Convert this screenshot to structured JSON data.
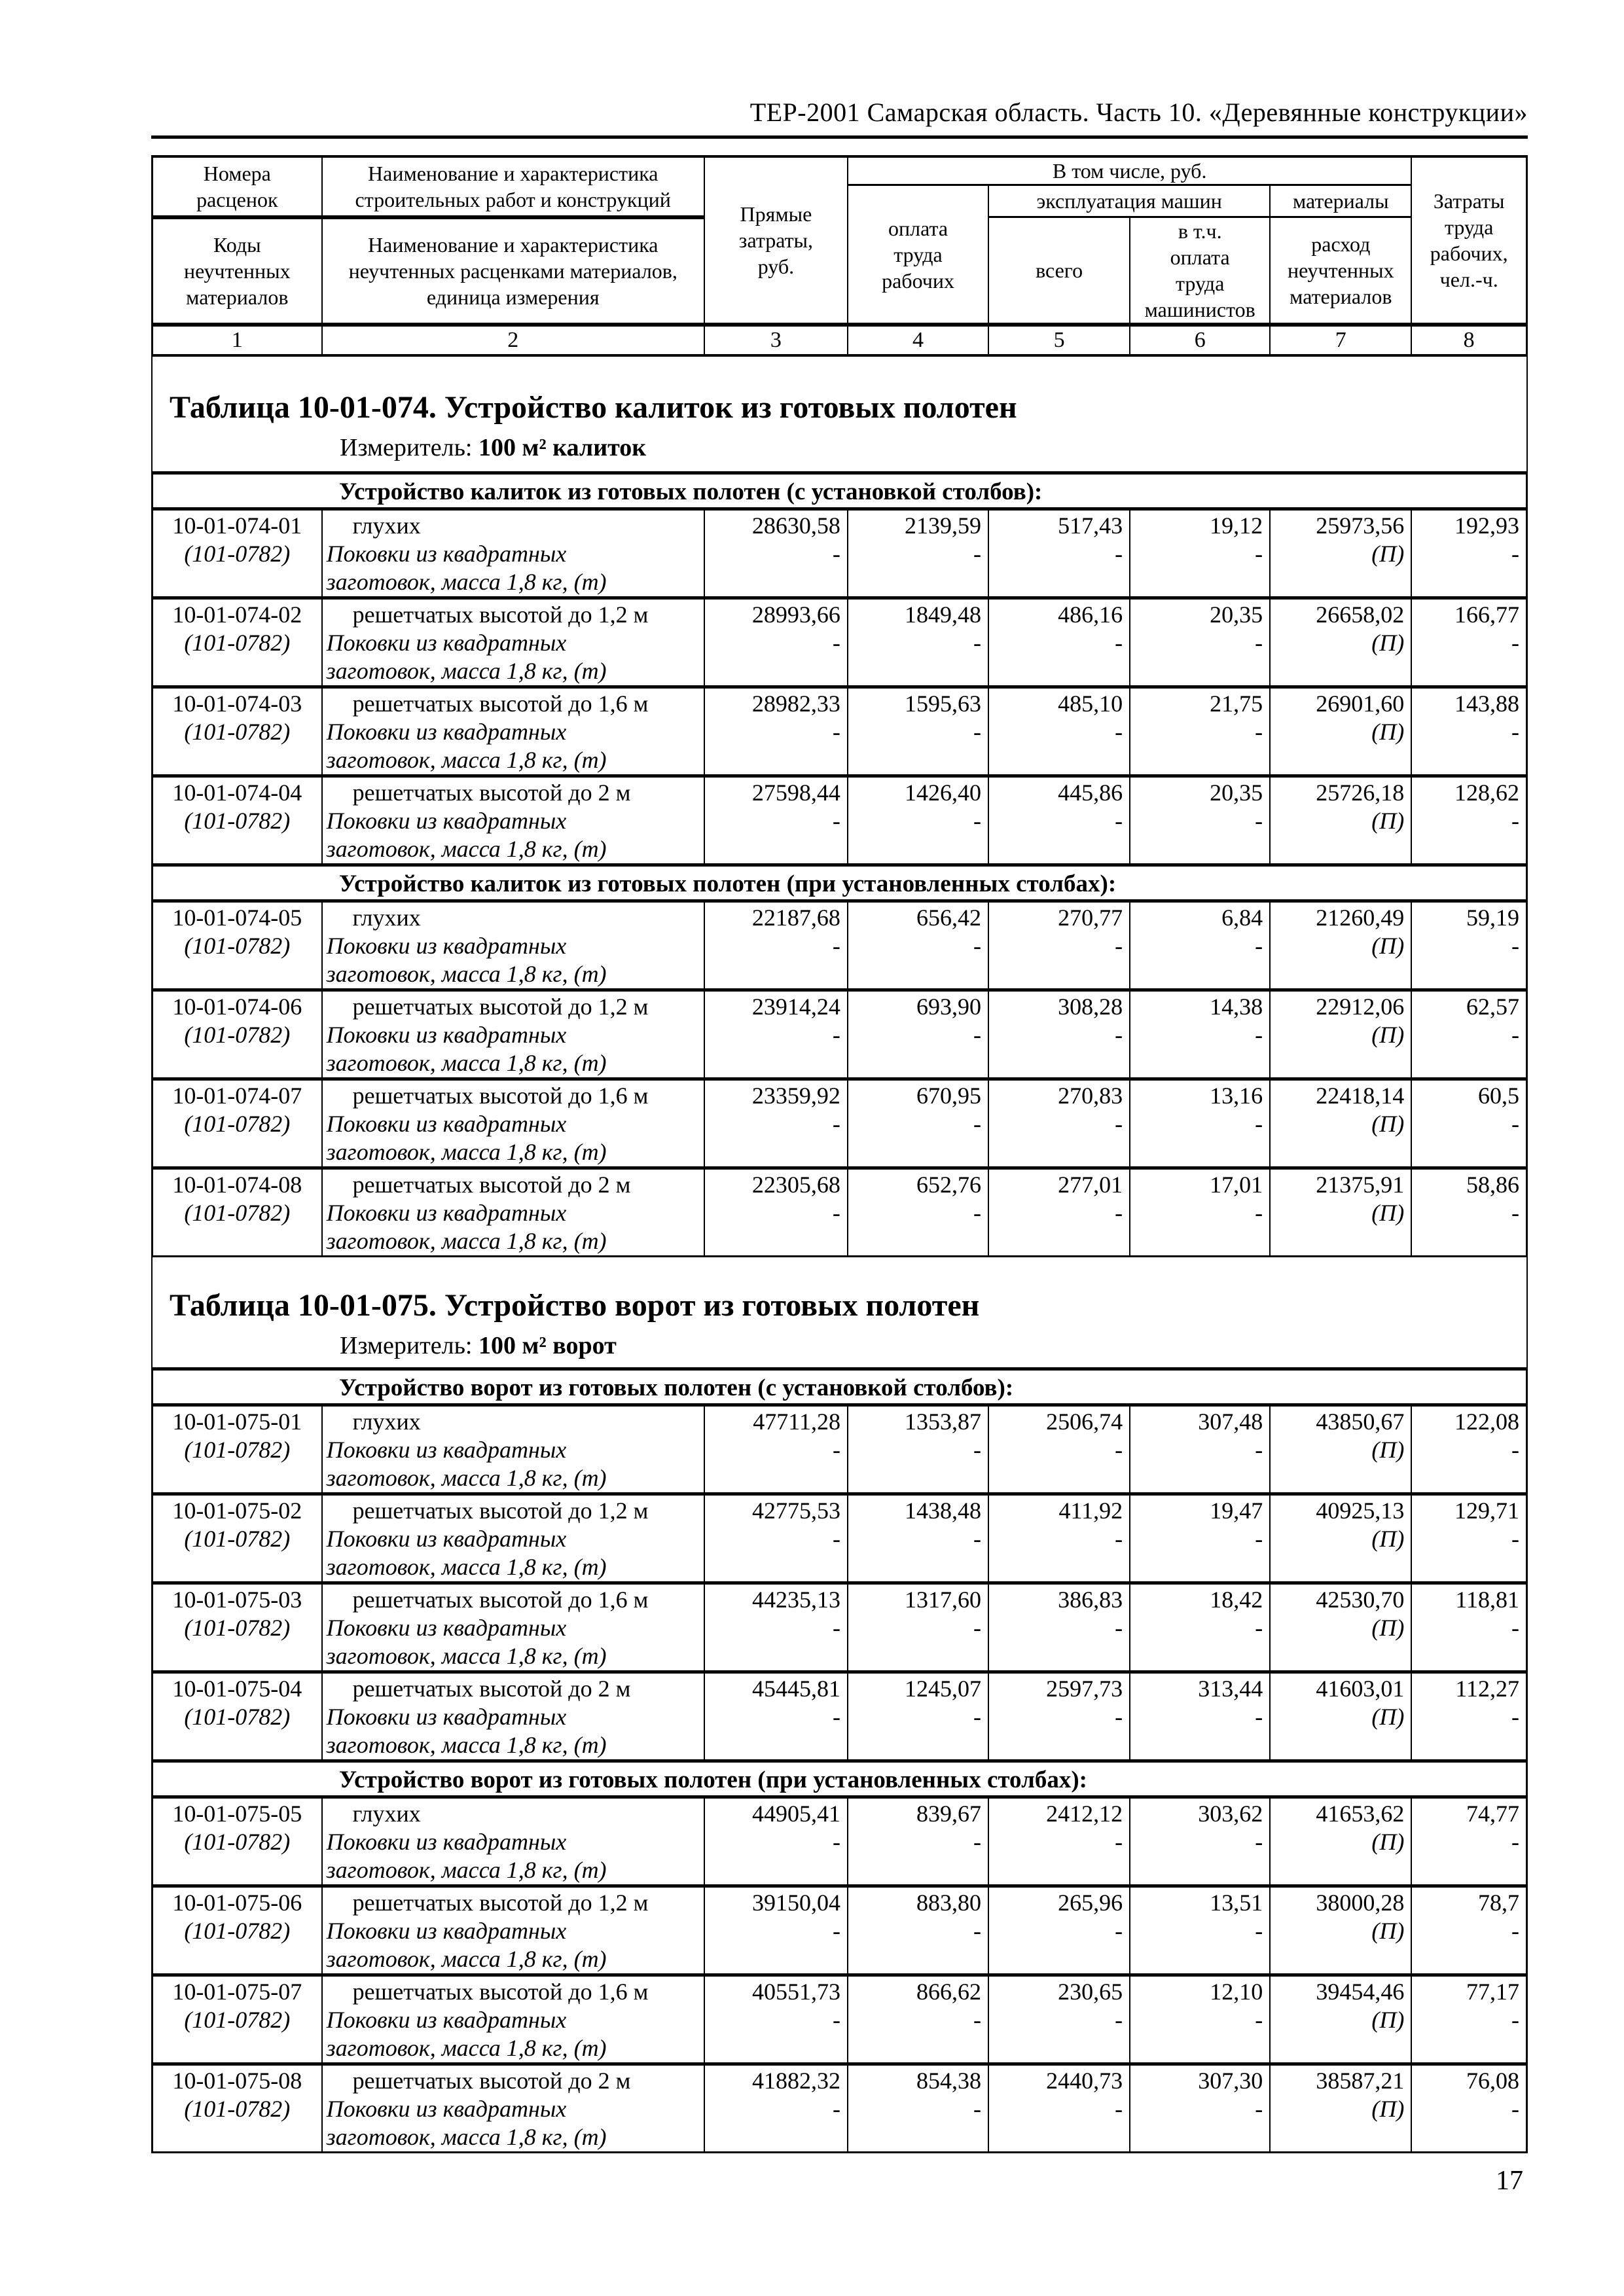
{
  "page_header": "ТЕР-2001 Самарская область. Часть 10. «Деревянные конструкции»",
  "page_number": "17",
  "columns_header": {
    "col1_top": "Номера\nрасценок",
    "col1_bottom": "Коды\nнеучтенных\nматериалов",
    "col2_top": "Наименование и характеристика\nстроительных работ и конструкций",
    "col2_bottom": "Наименование и характеристика\nнеучтенных расценками материалов,\nединица измерения",
    "col3": "Прямые\nзатраты,\nруб.",
    "group_including": "В том числе, руб.",
    "col4": "оплата\nтруда\nрабочих",
    "group_machines": "эксплуатация машин",
    "col5": "всего",
    "col6": "в т.ч.\nоплата\nтруда\nмашинистов",
    "group_materials": "материалы",
    "col7": "расход\nнеучтенных\nматериалов",
    "col8": "Затраты\nтруда\nрабочих,\nчел.-ч.",
    "numbers": [
      "1",
      "2",
      "3",
      "4",
      "5",
      "6",
      "7",
      "8"
    ]
  },
  "second_line": {
    "dash": "-",
    "materials_note": "(П)"
  },
  "tables": [
    {
      "title": "Таблица 10-01-074. Устройство калиток из готовых полотен",
      "measure_label": "Измеритель:",
      "measure_value": "100 м² калиток",
      "sections": [
        {
          "header": "Устройство калиток из готовых полотен (с установкой столбов):",
          "rows": [
            {
              "code": "10-01-074-01",
              "material_code": "(101-0782)",
              "work": "глухих",
              "material_lines": [
                "Поковки из квадратных",
                "заготовок, масса 1,8 кг, (т)"
              ],
              "direct": "28630,58",
              "labor": "2139,59",
              "machines_total": "517,43",
              "machinists": "19,12",
              "materials": "25973,56",
              "labor_hours": "192,93"
            },
            {
              "code": "10-01-074-02",
              "material_code": "(101-0782)",
              "work": "решетчатых высотой до 1,2 м",
              "material_lines": [
                "Поковки из квадратных",
                "заготовок, масса 1,8 кг, (т)"
              ],
              "direct": "28993,66",
              "labor": "1849,48",
              "machines_total": "486,16",
              "machinists": "20,35",
              "materials": "26658,02",
              "labor_hours": "166,77"
            },
            {
              "code": "10-01-074-03",
              "material_code": "(101-0782)",
              "work": "решетчатых высотой до 1,6 м",
              "material_lines": [
                "Поковки из квадратных",
                "заготовок, масса 1,8 кг, (т)"
              ],
              "direct": "28982,33",
              "labor": "1595,63",
              "machines_total": "485,10",
              "machinists": "21,75",
              "materials": "26901,60",
              "labor_hours": "143,88"
            },
            {
              "code": "10-01-074-04",
              "material_code": "(101-0782)",
              "work": "решетчатых высотой до 2 м",
              "material_lines": [
                "Поковки из квадратных",
                "заготовок, масса 1,8 кг, (т)"
              ],
              "direct": "27598,44",
              "labor": "1426,40",
              "machines_total": "445,86",
              "machinists": "20,35",
              "materials": "25726,18",
              "labor_hours": "128,62"
            }
          ]
        },
        {
          "header": "Устройство калиток из готовых полотен (при установленных столбах):",
          "rows": [
            {
              "code": "10-01-074-05",
              "material_code": "(101-0782)",
              "work": "глухих",
              "material_lines": [
                "Поковки из квадратных",
                "заготовок, масса 1,8 кг, (т)"
              ],
              "direct": "22187,68",
              "labor": "656,42",
              "machines_total": "270,77",
              "machinists": "6,84",
              "materials": "21260,49",
              "labor_hours": "59,19"
            },
            {
              "code": "10-01-074-06",
              "material_code": "(101-0782)",
              "work": "решетчатых высотой до 1,2 м",
              "material_lines": [
                "Поковки из квадратных",
                "заготовок, масса 1,8 кг, (т)"
              ],
              "direct": "23914,24",
              "labor": "693,90",
              "machines_total": "308,28",
              "machinists": "14,38",
              "materials": "22912,06",
              "labor_hours": "62,57"
            },
            {
              "code": "10-01-074-07",
              "material_code": "(101-0782)",
              "work": "решетчатых высотой до 1,6 м",
              "material_lines": [
                "Поковки из квадратных",
                "заготовок, масса 1,8 кг, (т)"
              ],
              "direct": "23359,92",
              "labor": "670,95",
              "machines_total": "270,83",
              "machinists": "13,16",
              "materials": "22418,14",
              "labor_hours": "60,5"
            },
            {
              "code": "10-01-074-08",
              "material_code": "(101-0782)",
              "work": "решетчатых высотой до 2 м",
              "material_lines": [
                "Поковки из квадратных",
                "заготовок, масса 1,8 кг, (т)"
              ],
              "direct": "22305,68",
              "labor": "652,76",
              "machines_total": "277,01",
              "machinists": "17,01",
              "materials": "21375,91",
              "labor_hours": "58,86"
            }
          ]
        }
      ]
    },
    {
      "title": "Таблица 10-01-075. Устройство ворот из готовых полотен",
      "measure_label": "Измеритель:",
      "measure_value": "100 м² ворот",
      "sections": [
        {
          "header": "Устройство ворот из готовых полотен (с установкой столбов):",
          "rows": [
            {
              "code": "10-01-075-01",
              "material_code": "(101-0782)",
              "work": "глухих",
              "material_lines": [
                "Поковки из квадратных",
                "заготовок, масса 1,8 кг, (т)"
              ],
              "direct": "47711,28",
              "labor": "1353,87",
              "machines_total": "2506,74",
              "machinists": "307,48",
              "materials": "43850,67",
              "labor_hours": "122,08"
            },
            {
              "code": "10-01-075-02",
              "material_code": "(101-0782)",
              "work": "решетчатых высотой до 1,2 м",
              "material_lines": [
                "Поковки из квадратных",
                "заготовок, масса 1,8 кг, (т)"
              ],
              "direct": "42775,53",
              "labor": "1438,48",
              "machines_total": "411,92",
              "machinists": "19,47",
              "materials": "40925,13",
              "labor_hours": "129,71"
            },
            {
              "code": "10-01-075-03",
              "material_code": "(101-0782)",
              "work": "решетчатых высотой до 1,6 м",
              "material_lines": [
                "Поковки из квадратных",
                "заготовок, масса 1,8 кг, (т)"
              ],
              "direct": "44235,13",
              "labor": "1317,60",
              "machines_total": "386,83",
              "machinists": "18,42",
              "materials": "42530,70",
              "labor_hours": "118,81"
            },
            {
              "code": "10-01-075-04",
              "material_code": "(101-0782)",
              "work": "решетчатых высотой до 2 м",
              "material_lines": [
                "Поковки из квадратных",
                "заготовок, масса 1,8 кг, (т)"
              ],
              "direct": "45445,81",
              "labor": "1245,07",
              "machines_total": "2597,73",
              "machinists": "313,44",
              "materials": "41603,01",
              "labor_hours": "112,27"
            }
          ]
        },
        {
          "header": "Устройство ворот из готовых полотен (при установленных столбах):",
          "rows": [
            {
              "code": "10-01-075-05",
              "material_code": "(101-0782)",
              "work": "глухих",
              "material_lines": [
                "Поковки из квадратных",
                "заготовок, масса 1,8 кг, (т)"
              ],
              "direct": "44905,41",
              "labor": "839,67",
              "machines_total": "2412,12",
              "machinists": "303,62",
              "materials": "41653,62",
              "labor_hours": "74,77"
            },
            {
              "code": "10-01-075-06",
              "material_code": "(101-0782)",
              "work": "решетчатых высотой до 1,2 м",
              "material_lines": [
                "Поковки из квадратных",
                "заготовок, масса 1,8 кг, (т)"
              ],
              "direct": "39150,04",
              "labor": "883,80",
              "machines_total": "265,96",
              "machinists": "13,51",
              "materials": "38000,28",
              "labor_hours": "78,7"
            },
            {
              "code": "10-01-075-07",
              "material_code": "(101-0782)",
              "work": "решетчатых высотой до 1,6 м",
              "material_lines": [
                "Поковки из квадратных",
                "заготовок, масса 1,8 кг, (т)"
              ],
              "direct": "40551,73",
              "labor": "866,62",
              "machines_total": "230,65",
              "machinists": "12,10",
              "materials": "39454,46",
              "labor_hours": "77,17"
            },
            {
              "code": "10-01-075-08",
              "material_code": "(101-0782)",
              "work": "решетчатых высотой до 2 м",
              "material_lines": [
                "Поковки из квадратных",
                "заготовок, масса 1,8 кг, (т)"
              ],
              "direct": "41882,32",
              "labor": "854,38",
              "machines_total": "2440,73",
              "machinists": "307,30",
              "materials": "38587,21",
              "labor_hours": "76,08"
            }
          ]
        }
      ]
    }
  ]
}
